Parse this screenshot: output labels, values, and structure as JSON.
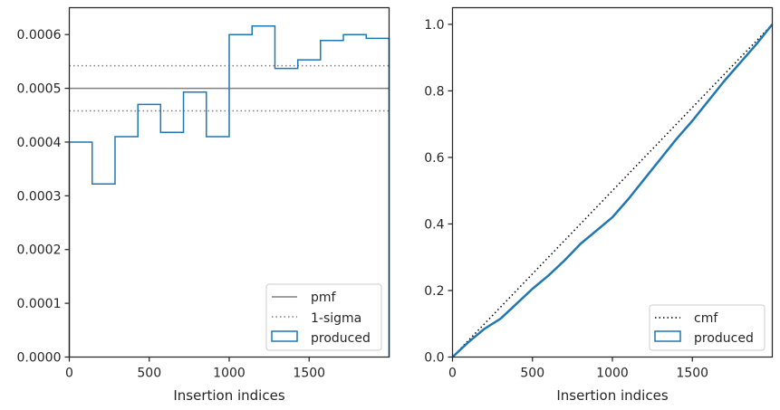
{
  "colors": {
    "produced": "#1f77b4",
    "pmf": "#808080",
    "sigma": "#808080",
    "cmf": "#000000",
    "axes": "#262626"
  },
  "chart_data": [
    {
      "type": "histogram",
      "xlabel": "Insertion indices",
      "ylabel": "",
      "xlim": [
        0,
        2000
      ],
      "ylim": [
        0,
        0.00065
      ],
      "x_ticks": [
        0,
        500,
        1000,
        1500
      ],
      "x_tick_labels": [
        "0",
        "500",
        "1000",
        "1500"
      ],
      "y_ticks": [
        0,
        0.0001,
        0.0002,
        0.0003,
        0.0004,
        0.0005,
        0.0006
      ],
      "y_tick_labels": [
        "0.0000",
        "0.0001",
        "0.0002",
        "0.0003",
        "0.0004",
        "0.0005",
        "0.0006"
      ],
      "legend_position": "lower-right",
      "legend": [
        "pmf",
        "1-sigma",
        "produced"
      ],
      "series": [
        {
          "name": "produced",
          "style": "step",
          "bin_edges": [
            0,
            143,
            286,
            429,
            571,
            714,
            857,
            1000,
            1143,
            1286,
            1429,
            1571,
            1714,
            1857,
            2000
          ],
          "values": [
            0.0004,
            0.000322,
            0.00041,
            0.00047,
            0.000418,
            0.000493,
            0.00041,
            0.0006,
            0.000616,
            0.000537,
            0.000553,
            0.000589,
            0.0006,
            0.000593
          ]
        },
        {
          "name": "pmf",
          "style": "hline-solid",
          "y": 0.0005
        },
        {
          "name": "1-sigma",
          "style": "hline-dotted",
          "y": [
            0.000458,
            0.000542
          ]
        }
      ]
    },
    {
      "type": "line",
      "xlabel": "Insertion indices",
      "ylabel": "",
      "xlim": [
        0,
        2000
      ],
      "ylim": [
        0,
        1.05
      ],
      "x_ticks": [
        0,
        500,
        1000,
        1500
      ],
      "x_tick_labels": [
        "0",
        "500",
        "1000",
        "1500"
      ],
      "y_ticks": [
        0,
        0.2,
        0.4,
        0.6,
        0.8,
        1.0
      ],
      "y_tick_labels": [
        "0.0",
        "0.2",
        "0.4",
        "0.6",
        "0.8",
        "1.0"
      ],
      "legend_position": "lower-right",
      "legend": [
        "cmf",
        "produced"
      ],
      "series": [
        {
          "name": "cmf",
          "style": "dotted",
          "x": [
            0,
            2000
          ],
          "y": [
            0,
            1.0
          ]
        },
        {
          "name": "produced",
          "style": "step",
          "x": [
            0,
            100,
            200,
            300,
            400,
            500,
            600,
            700,
            800,
            900,
            1000,
            1100,
            1200,
            1300,
            1400,
            1500,
            1600,
            1700,
            1800,
            1900,
            2000
          ],
          "y": [
            0,
            0.045,
            0.085,
            0.115,
            0.16,
            0.205,
            0.245,
            0.29,
            0.34,
            0.38,
            0.42,
            0.475,
            0.535,
            0.595,
            0.655,
            0.71,
            0.77,
            0.83,
            0.885,
            0.94,
            1.0
          ]
        }
      ]
    }
  ]
}
